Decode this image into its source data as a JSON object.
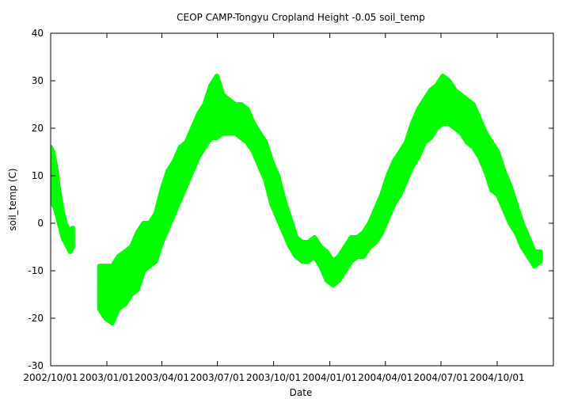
{
  "chart_data": {
    "type": "scatter",
    "title": "CEOP CAMP-Tongyu Cropland Height -0.05 soil_temp",
    "xlabel": "Date",
    "ylabel": "soil_temp (C)",
    "ylim": [
      -30,
      40
    ],
    "yticks": [
      -30,
      -20,
      -10,
      0,
      10,
      20,
      30,
      40
    ],
    "xlim": [
      "2002-10-01",
      "2005-01-01"
    ],
    "xticks": [
      {
        "date": "2002-10-01",
        "label": "2002/10/01"
      },
      {
        "date": "2003-01-01",
        "label": "2003/01/01"
      },
      {
        "date": "2003-04-01",
        "label": "2003/04/01"
      },
      {
        "date": "2003-07-01",
        "label": "2003/07/01"
      },
      {
        "date": "2003-10-01",
        "label": "2003/10/01"
      },
      {
        "date": "2004-01-01",
        "label": "2004/01/01"
      },
      {
        "date": "2004-04-01",
        "label": "2004/04/01"
      },
      {
        "date": "2004-07-01",
        "label": "2004/07/01"
      },
      {
        "date": "2004-10-01",
        "label": "2004/10/01"
      }
    ],
    "series": [
      {
        "name": "soil_temp",
        "color": "#00ff00",
        "segments": [
          {
            "points": [
              [
                "2002-10-01",
                14
              ],
              [
                "2002-10-05",
                12
              ],
              [
                "2002-10-09",
                8
              ],
              [
                "2002-10-13",
                5
              ],
              [
                "2002-10-17",
                2
              ],
              [
                "2002-10-21",
                0
              ],
              [
                "2002-10-25",
                -2
              ],
              [
                "2002-10-29",
                -3
              ],
              [
                "2002-11-02",
                -4
              ],
              [
                "2002-11-06",
                -2
              ]
            ],
            "spread": [
              [
                -2,
                2
              ],
              [
                -8,
                3
              ],
              [
                -5,
                4
              ],
              [
                -4,
                3
              ],
              [
                -3,
                3
              ],
              [
                -3,
                2
              ],
              [
                -2,
                2
              ],
              [
                -2,
                2
              ],
              [
                -2,
                2
              ],
              [
                -3,
                1
              ]
            ]
          },
          {
            "points": [
              [
                "2002-12-20",
                -12
              ],
              [
                "2002-12-30",
                -14
              ],
              [
                "2003-01-10",
                -14
              ],
              [
                "2003-01-20",
                -13
              ],
              [
                "2003-01-31",
                -11
              ],
              [
                "2003-02-10",
                -9
              ],
              [
                "2003-02-20",
                -7
              ],
              [
                "2003-03-02",
                -5
              ],
              [
                "2003-03-12",
                -4
              ],
              [
                "2003-03-22",
                -2
              ],
              [
                "2003-04-01",
                2
              ],
              [
                "2003-04-11",
                5
              ],
              [
                "2003-04-21",
                8
              ],
              [
                "2003-05-01",
                11
              ],
              [
                "2003-05-11",
                13
              ],
              [
                "2003-05-21",
                16
              ],
              [
                "2003-05-31",
                18
              ],
              [
                "2003-06-10",
                20
              ],
              [
                "2003-06-20",
                22
              ],
              [
                "2003-06-30",
                23
              ],
              [
                "2003-07-10",
                23
              ],
              [
                "2003-07-20",
                22
              ],
              [
                "2003-07-30",
                22
              ],
              [
                "2003-08-09",
                21
              ],
              [
                "2003-08-19",
                20
              ],
              [
                "2003-08-29",
                18
              ],
              [
                "2003-09-08",
                16
              ],
              [
                "2003-09-18",
                13
              ],
              [
                "2003-09-28",
                9
              ],
              [
                "2003-10-08",
                5
              ],
              [
                "2003-10-18",
                1
              ],
              [
                "2003-10-28",
                -2
              ],
              [
                "2003-11-07",
                -5
              ],
              [
                "2003-11-17",
                -6
              ],
              [
                "2003-11-27",
                -6
              ],
              [
                "2003-12-07",
                -5
              ],
              [
                "2003-12-17",
                -7
              ],
              [
                "2003-12-27",
                -9
              ],
              [
                "2004-01-06",
                -11
              ],
              [
                "2004-01-16",
                -10
              ],
              [
                "2004-01-26",
                -8
              ],
              [
                "2004-02-05",
                -6
              ],
              [
                "2004-02-15",
                -5
              ],
              [
                "2004-02-25",
                -4
              ],
              [
                "2004-03-06",
                -2
              ],
              [
                "2004-03-16",
                0
              ],
              [
                "2004-03-26",
                3
              ],
              [
                "2004-04-05",
                6
              ],
              [
                "2004-04-15",
                9
              ],
              [
                "2004-04-25",
                11
              ],
              [
                "2004-05-05",
                13
              ],
              [
                "2004-05-15",
                16
              ],
              [
                "2004-05-25",
                19
              ],
              [
                "2004-06-04",
                21
              ],
              [
                "2004-06-14",
                22
              ],
              [
                "2004-06-24",
                23
              ],
              [
                "2004-07-04",
                24
              ],
              [
                "2004-07-14",
                24
              ],
              [
                "2004-07-24",
                23
              ],
              [
                "2004-08-03",
                22
              ],
              [
                "2004-08-13",
                21
              ],
              [
                "2004-08-23",
                20
              ],
              [
                "2004-09-02",
                18
              ],
              [
                "2004-09-12",
                15
              ],
              [
                "2004-09-22",
                12
              ],
              [
                "2004-10-02",
                10
              ],
              [
                "2004-10-12",
                7
              ],
              [
                "2004-10-22",
                4
              ],
              [
                "2004-11-01",
                1
              ],
              [
                "2004-11-11",
                -2
              ],
              [
                "2004-11-21",
                -5
              ],
              [
                "2004-12-01",
                -7
              ],
              [
                "2004-12-11",
                -7
              ]
            ],
            "spread": [
              [
                -6,
                3
              ],
              [
                -6,
                5
              ],
              [
                -7,
                5
              ],
              [
                -5,
                6
              ],
              [
                -6,
                5
              ],
              [
                -6,
                4
              ],
              [
                -7,
                5
              ],
              [
                -5,
                5
              ],
              [
                -5,
                4
              ],
              [
                -6,
                4
              ],
              [
                -6,
                5
              ],
              [
                -6,
                6
              ],
              [
                -6,
                5
              ],
              [
                -6,
                5
              ],
              [
                -5,
                4
              ],
              [
                -5,
                4
              ],
              [
                -4,
                5
              ],
              [
                -4,
                5
              ],
              [
                -4,
                7
              ],
              [
                -5,
                8
              ],
              [
                -4,
                4
              ],
              [
                -3,
                4
              ],
              [
                -3,
                3
              ],
              [
                -3,
                4
              ],
              [
                -3,
                4
              ],
              [
                -3,
                3
              ],
              [
                -4,
                3
              ],
              [
                -4,
                4
              ],
              [
                -5,
                4
              ],
              [
                -4,
                5
              ],
              [
                -3,
                4
              ],
              [
                -3,
                3
              ],
              [
                -2,
                2
              ],
              [
                -2,
                2
              ],
              [
                -2,
                2
              ],
              [
                -2,
                2
              ],
              [
                -2,
                2
              ],
              [
                -3,
                3
              ],
              [
                -2,
                3
              ],
              [
                -2,
                3
              ],
              [
                -2,
                3
              ],
              [
                -2,
                3
              ],
              [
                -2,
                2
              ],
              [
                -3,
                2
              ],
              [
                -3,
                2
              ],
              [
                -4,
                3
              ],
              [
                -5,
                3
              ],
              [
                -5,
                4
              ],
              [
                -5,
                4
              ],
              [
                -5,
                4
              ],
              [
                -4,
                4
              ],
              [
                -4,
                5
              ],
              [
                -5,
                5
              ],
              [
                -4,
                5
              ],
              [
                -4,
                6
              ],
              [
                -3,
                6
              ],
              [
                -3,
                7
              ],
              [
                -3,
                6
              ],
              [
                -3,
                5
              ],
              [
                -3,
                5
              ],
              [
                -4,
                5
              ],
              [
                -4,
                5
              ],
              [
                -4,
                4
              ],
              [
                -4,
                4
              ],
              [
                -5,
                5
              ],
              [
                -4,
                5
              ],
              [
                -4,
                4
              ],
              [
                -4,
                4
              ],
              [
                -3,
                3
              ],
              [
                -3,
                2
              ],
              [
                -2,
                2
              ],
              [
                -2,
                1
              ],
              [
                -1,
                1
              ]
            ]
          }
        ]
      }
    ]
  }
}
